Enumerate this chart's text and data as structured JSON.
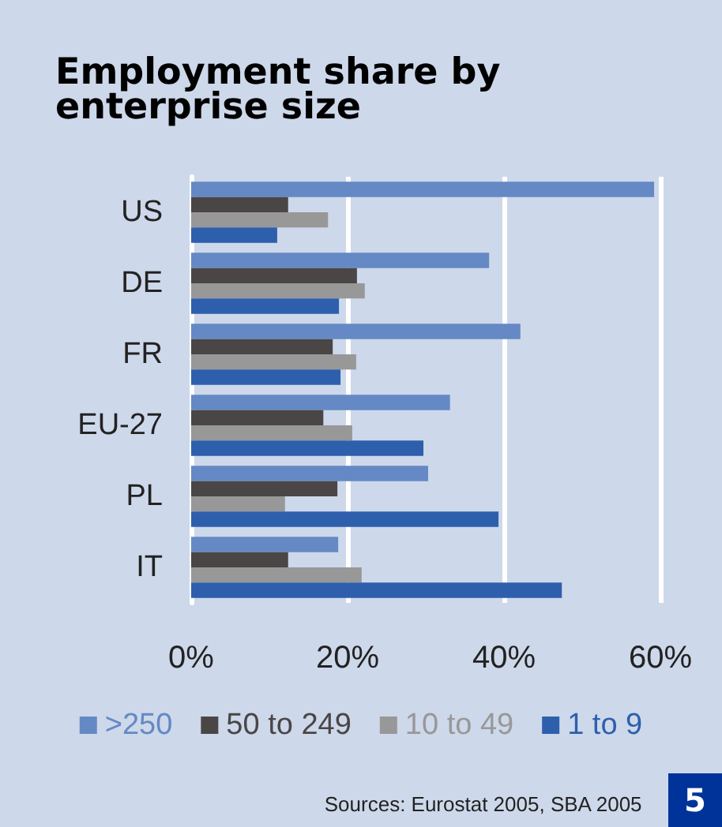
{
  "chart_data": {
    "type": "bar",
    "orientation": "horizontal",
    "title": "Employment share by enterprise size",
    "categories": [
      "US",
      "DE",
      "FR",
      "EU-27",
      "PL",
      "IT"
    ],
    "series": [
      {
        "name": ">250",
        "color": "#6589c4",
        "values": [
          59.2,
          38.1,
          42.1,
          33.1,
          30.3,
          18.8
        ]
      },
      {
        "name": "50 to 249",
        "color": "#4a4646",
        "values": [
          12.4,
          21.2,
          18.1,
          16.9,
          18.7,
          12.4
        ]
      },
      {
        "name": "10 to 49",
        "color": "#989898",
        "values": [
          17.5,
          22.2,
          21.1,
          20.6,
          12.0,
          21.8
        ]
      },
      {
        "name": "1 to 9",
        "color": "#2e5fac",
        "values": [
          11.0,
          18.9,
          19.1,
          29.7,
          39.3,
          47.4
        ]
      }
    ],
    "xlim": [
      0,
      60
    ],
    "xticks": [
      {
        "value": 0,
        "label": "0%"
      },
      {
        "value": 20,
        "label": "20%"
      },
      {
        "value": 40,
        "label": "40%"
      },
      {
        "value": 60,
        "label": "60%"
      }
    ],
    "grid": "x",
    "legend": "bottom",
    "annotations": [
      "Sources: Eurostat 2005, SBA 2005",
      "5"
    ]
  }
}
